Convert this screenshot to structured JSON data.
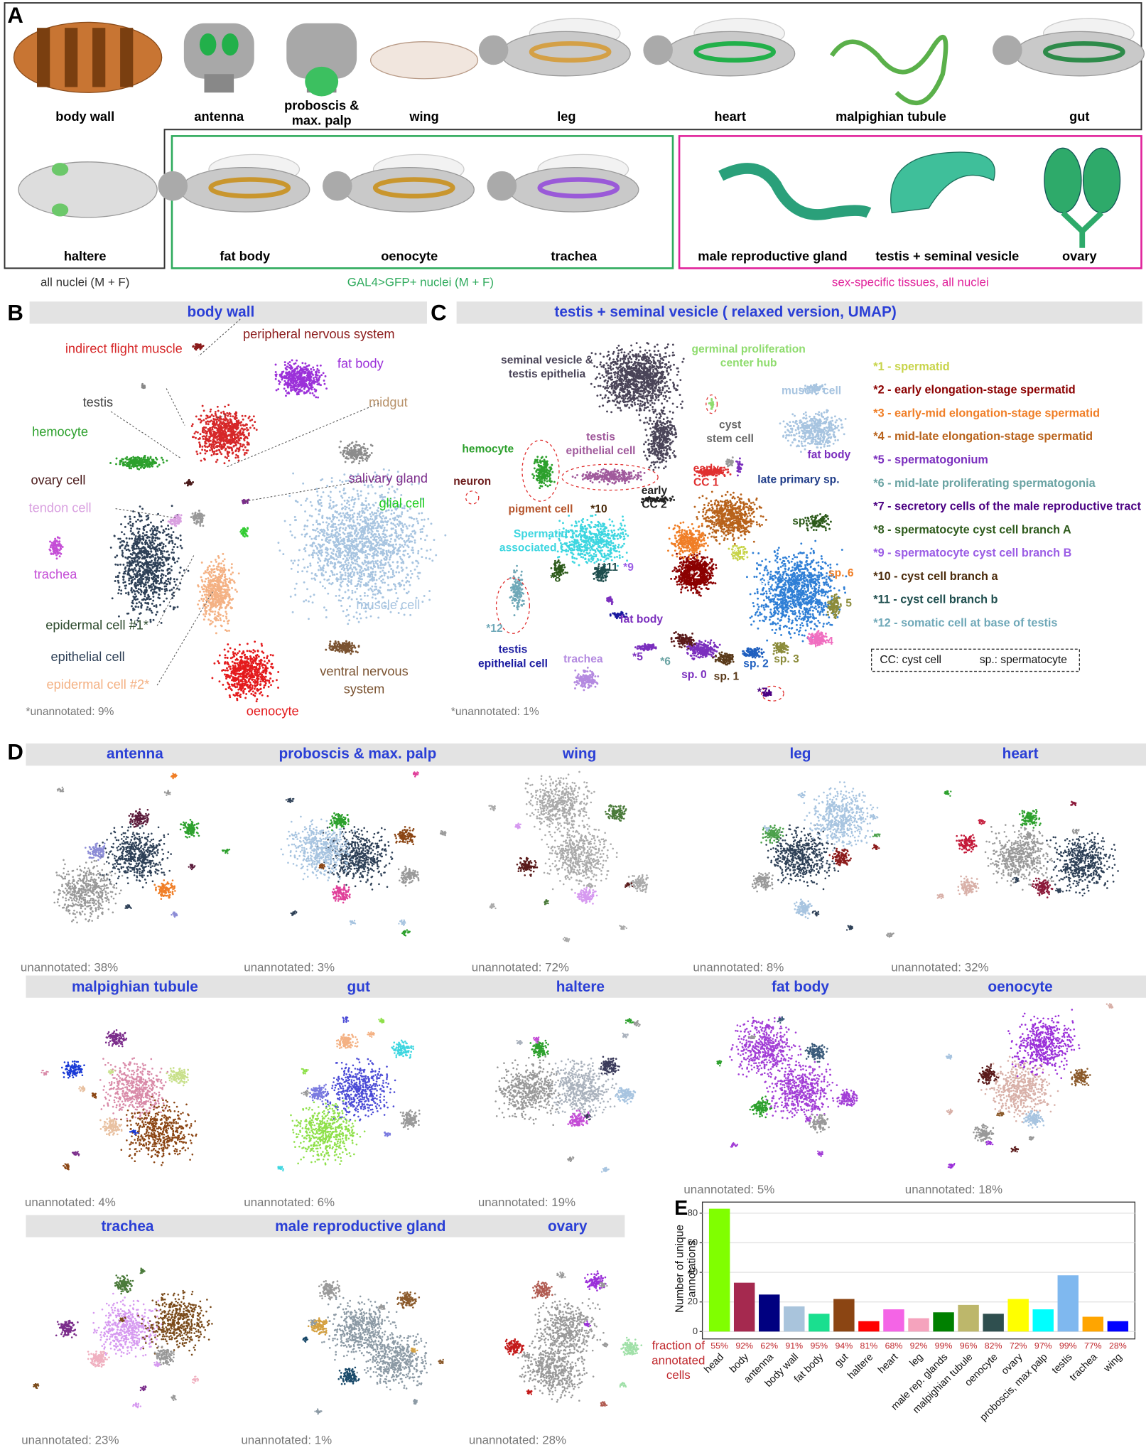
{
  "panel_a": {
    "letter": "A",
    "row1": [
      "body wall",
      "antenna",
      [
        "proboscis &",
        "max. palp"
      ],
      "wing",
      "leg",
      "heart",
      "malpighian tubule",
      "gut"
    ],
    "haltere": "haltere",
    "gal4_tissues": [
      "fat body",
      "oenocyte",
      "trachea"
    ],
    "sex_tissues": [
      "male reproductive gland",
      "testis + seminal vesicle",
      "ovary"
    ],
    "captions": [
      "all nuclei (M + F)",
      "GAL4>GFP+ nuclei (M + F)",
      "sex-specific tissues, all nuclei"
    ]
  },
  "panel_b": {
    "letter": "B",
    "title": "body wall",
    "labels": [
      "peripheral nervous system",
      "indirect flight muscle",
      "fat body",
      "midgut",
      "testis",
      "hemocyte",
      "salivary gland",
      "ovary cell",
      "glial cell",
      "tendon cell",
      "trachea",
      "muscle cell",
      "epidermal cell #1*",
      "epithelial cell",
      [
        "ventral nervous",
        "system"
      ],
      "epidermal cell #2*",
      "oenocyte"
    ],
    "note": "*unannotated: 9%"
  },
  "panel_c": {
    "letter": "C",
    "title": "testis + seminal vesicle ( relaxed version, UMAP)",
    "labels": [
      [
        "seminal vesicle &",
        "testis epithelia"
      ],
      [
        "germinal proliferation",
        "center hub"
      ],
      "muscle cell",
      [
        "cyst",
        "stem cell"
      ],
      [
        "testis",
        "epithelial cell"
      ],
      "hemocyte",
      "fat body",
      "neuron",
      [
        "early",
        "CC 2"
      ],
      [
        "early",
        "CC 1"
      ],
      "pigment cell",
      "*10",
      "*4",
      "late primary sp.",
      "sp. 7",
      [
        "Spermatid",
        "associated CCs"
      ],
      "*3",
      "*1",
      "*2",
      "sp. 6",
      "*8",
      "*11",
      "*9",
      "sp.",
      "sp. 5",
      "*12",
      "fat body",
      "sp. 4",
      [
        "testis",
        "epithelial cell"
      ],
      "trachea",
      "*5",
      "*6",
      "sp. 3",
      "sp. 2",
      "sp. 0",
      "sp. 1",
      "*7"
    ],
    "legend": [
      "*1 - spermatid",
      "*2 - early elongation-stage spermatid",
      "*3 - early-mid elongation-stage spermatid",
      "*4 - mid-late elongation-stage spermatid",
      "*5 - spermatogonium",
      "*6 - mid-late proliferating spermatogonia",
      "*7 - secretory cells of the male reproductive tract",
      "*8 - spermatocyte cyst cell branch A",
      "*9 - spermatocyte cyst cell branch B",
      "*10 - cyst cell branch a",
      "*11 - cyst cell branch b",
      "*12 - somatic cell at base of testis"
    ],
    "key": [
      "CC: cyst cell",
      "sp.: spermatocyte"
    ],
    "note": "*unannotated: 1%"
  },
  "panel_d": {
    "letter": "D",
    "plots": [
      {
        "title": "antenna",
        "note": "unannotated: 38%"
      },
      {
        "title": "proboscis & max. palp",
        "note": "unannotated: 3%"
      },
      {
        "title": "wing",
        "note": "unannotated: 72%"
      },
      {
        "title": "leg",
        "note": "unannotated: 8%"
      },
      {
        "title": "heart",
        "note": "unannotated: 32%"
      },
      {
        "title": "malpighian tubule",
        "note": "unannotated: 4%"
      },
      {
        "title": "gut",
        "note": "unannotated: 6%"
      },
      {
        "title": "haltere",
        "note": "unannotated: 19%"
      },
      {
        "title": "fat body",
        "note": "unannotated: 5%"
      },
      {
        "title": "oenocyte",
        "note": "unannotated: 18%"
      },
      {
        "title": "trachea",
        "note": "unannotated: 23%"
      },
      {
        "title": "male reproductive gland",
        "note": "unannotated: 1%"
      },
      {
        "title": "ovary",
        "note": "unannotated: 28%"
      }
    ]
  },
  "chart_data": {
    "type": "bar",
    "panel": "E",
    "y_label": [
      "Number of unique",
      "annotations"
    ],
    "categories": [
      "head",
      "body",
      "antenna",
      "body wall",
      "fat body",
      "gut",
      "haltere",
      "heart",
      "leg",
      "male rep. glands",
      "malpighian tubule",
      "oenocyte",
      "ovary",
      "proboscis, max palp",
      "testis",
      "trachea",
      "wing"
    ],
    "values": [
      83,
      33,
      25,
      17,
      12,
      22,
      7,
      15,
      9,
      13,
      18,
      12,
      22,
      15,
      38,
      10,
      7
    ],
    "colors": [
      "#80ff00",
      "#a5294f",
      "#000080",
      "#a9c4dc",
      "#1adf8f",
      "#8b4513",
      "#ff0000",
      "#f464e6",
      "#f5a3bd",
      "#008000",
      "#bdb76b",
      "#2f4f4f",
      "#ffff00",
      "#00ffff",
      "#7fb8ef",
      "#ffa500",
      "#0000ff"
    ],
    "fraction_title": [
      "fraction of",
      "annotated",
      "cells"
    ],
    "fraction_labels": [
      "55%",
      "92%",
      "62%",
      "91%",
      "95%",
      "94%",
      "81%",
      "68%",
      "92%",
      "99%",
      "96%",
      "82%",
      "72%",
      "97%",
      "99%",
      "77%",
      "28%"
    ],
    "ylim": [
      -5,
      87.5
    ],
    "yticks": [
      0,
      20,
      40,
      60,
      80
    ],
    "grid": true
  }
}
